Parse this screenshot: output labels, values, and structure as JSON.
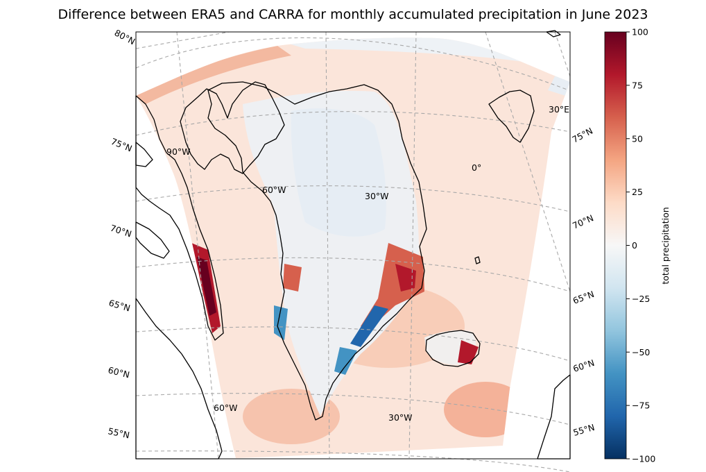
{
  "title": "Difference between ERA5 and CARRA for monthly accumulated precipitation in June 2023",
  "colorbar": {
    "label": "total precipitation",
    "ticks": [
      100,
      75,
      50,
      25,
      0,
      -25,
      -50,
      -75,
      -100
    ],
    "tick_labels": [
      "100",
      "75",
      "50",
      "25",
      "0",
      "−25",
      "−50",
      "−75",
      "−100"
    ],
    "range": [
      -100,
      100
    ],
    "colormap": "RdBu_r",
    "colors": [
      "#053061",
      "#2166ac",
      "#4393c3",
      "#92c5de",
      "#d1e5f0",
      "#f7f7f7",
      "#fddbc7",
      "#f4a582",
      "#d6604d",
      "#b2182b",
      "#67001f"
    ]
  },
  "latitude_labels": {
    "left": [
      "80°N",
      "75°N",
      "70°N",
      "65°N",
      "60°N",
      "55°N"
    ],
    "right": [
      "75°N",
      "70°N",
      "65°N",
      "60°N",
      "55°N"
    ]
  },
  "longitude_labels": {
    "interior": [
      "90°W",
      "60°W",
      "30°W",
      "0°",
      "30°E"
    ],
    "bottom": [
      "60°W",
      "30°W"
    ]
  }
}
